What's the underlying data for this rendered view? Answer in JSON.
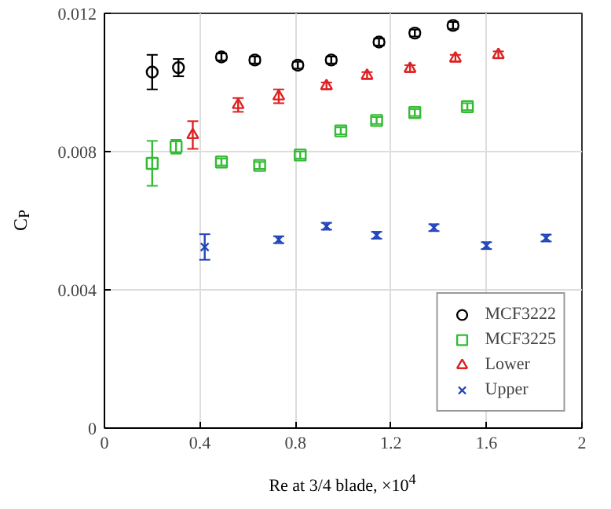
{
  "chart_data": {
    "type": "scatter",
    "xlabel": "Re at 3/4 blade, ×10$^{4}$",
    "ylabel": "C$_{P}$",
    "xlim": [
      0,
      2
    ],
    "ylim": [
      0,
      0.012
    ],
    "xticks": [
      0,
      0.4,
      0.8,
      1.2,
      1.6,
      2
    ],
    "yticks": [
      0,
      0.004,
      0.008,
      0.012
    ],
    "grid": true,
    "legend": "bottom right",
    "series": [
      {
        "name": "MCF3222",
        "color": "#000000",
        "marker": "circle",
        "x": [
          0.2,
          0.31,
          0.49,
          0.63,
          0.81,
          0.95,
          1.15,
          1.3,
          1.46
        ],
        "values": [
          0.0103,
          0.01043,
          0.01074,
          0.01065,
          0.0105,
          0.01065,
          0.01117,
          0.01143,
          0.01165
        ],
        "errors": [
          0.0005,
          0.00025,
          0.0001,
          0.0001,
          0.0001,
          0.0001,
          0.0001,
          0.0001,
          0.0001
        ]
      },
      {
        "name": "MCF3225",
        "color": "#33bb33",
        "marker": "square",
        "x": [
          0.2,
          0.3,
          0.49,
          0.65,
          0.82,
          0.99,
          1.14,
          1.3,
          1.52
        ],
        "values": [
          0.00766,
          0.00814,
          0.0077,
          0.0076,
          0.0079,
          0.0086,
          0.0089,
          0.00913,
          0.0093
        ],
        "errors": [
          0.00065,
          0.0002,
          0.0001,
          0.0001,
          0.0001,
          0.0001,
          0.0001,
          0.0001,
          0.0001
        ]
      },
      {
        "name": "Lower",
        "color": "#dd2222",
        "marker": "triangle",
        "x": [
          0.37,
          0.56,
          0.73,
          0.93,
          1.1,
          1.28,
          1.47,
          1.65
        ],
        "values": [
          0.00848,
          0.00935,
          0.0096,
          0.0099,
          0.0102,
          0.0104,
          0.0107,
          0.0108
        ],
        "errors": [
          0.0004,
          0.0002,
          0.0002,
          0.0001,
          0.0001,
          0.0001,
          0.0001,
          0.0001
        ]
      },
      {
        "name": "Upper",
        "color": "#2244bb",
        "marker": "cross",
        "x": [
          0.42,
          0.73,
          0.93,
          1.14,
          1.38,
          1.6,
          1.85
        ],
        "values": [
          0.00524,
          0.00545,
          0.00584,
          0.00558,
          0.0058,
          0.00528,
          0.0055
        ],
        "errors": [
          0.00037,
          0.0001,
          0.0001,
          0.0001,
          0.0001,
          0.0001,
          0.0001
        ]
      }
    ]
  }
}
